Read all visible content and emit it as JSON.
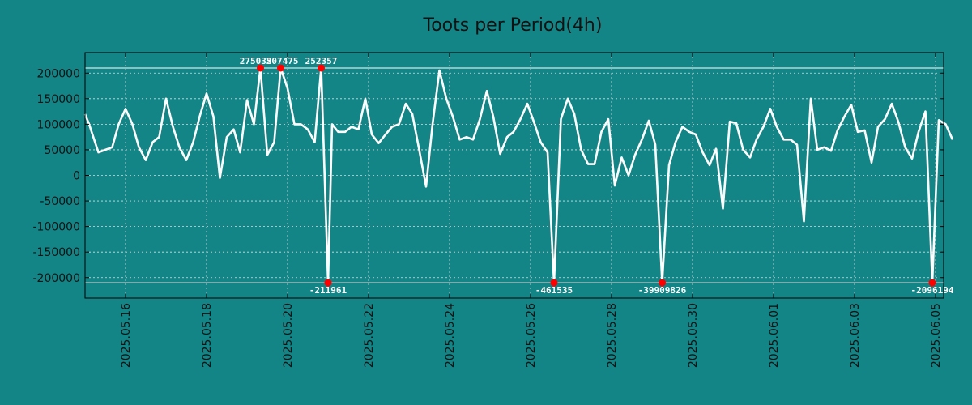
{
  "chart_data": {
    "type": "line",
    "title": "Toots per Period(4h)",
    "xlabel": "",
    "ylabel": "",
    "ylim": [
      -240000,
      240000
    ],
    "xlim_days": [
      0,
      21.2
    ],
    "grid": true,
    "colors": {
      "background": "#138587",
      "plot_background": "#138587",
      "line": "#ffffff",
      "marker": "#ff0000",
      "grid": "#d0e0e0",
      "axis": "#000000",
      "text": "#111111",
      "annotation_text": "#ffffff"
    },
    "y_ticks": [
      {
        "value": 200000,
        "label": "200000"
      },
      {
        "value": 150000,
        "label": "150000"
      },
      {
        "value": 100000,
        "label": "100000"
      },
      {
        "value": 50000,
        "label": "50000"
      },
      {
        "value": 0,
        "label": "0"
      },
      {
        "value": -50000,
        "label": "-50000"
      },
      {
        "value": -100000,
        "label": "-100000"
      },
      {
        "value": -150000,
        "label": "-150000"
      },
      {
        "value": -200000,
        "label": "-200000"
      }
    ],
    "x_ticks": [
      {
        "day": 1.0,
        "label": "2025.05.16"
      },
      {
        "day": 3.0,
        "label": "2025.05.18"
      },
      {
        "day": 5.0,
        "label": "2025.05.20"
      },
      {
        "day": 7.0,
        "label": "2025.05.22"
      },
      {
        "day": 9.0,
        "label": "2025.05.24"
      },
      {
        "day": 11.0,
        "label": "2025.05.26"
      },
      {
        "day": 13.0,
        "label": "2025.05.28"
      },
      {
        "day": 15.0,
        "label": "2025.05.30"
      },
      {
        "day": 17.0,
        "label": "2025.06.01"
      },
      {
        "day": 19.0,
        "label": "2025.06.03"
      },
      {
        "day": 21.0,
        "label": "2025.06.05"
      }
    ],
    "reference_lines": [
      {
        "name": "upper-clip-line",
        "value": 210000
      },
      {
        "name": "lower-clip-line",
        "value": -210000
      }
    ],
    "series": [
      {
        "name": "toots",
        "points": [
          [
            0.0,
            120000
          ],
          [
            0.1,
            100000
          ],
          [
            0.33,
            45000
          ],
          [
            0.67,
            55000
          ],
          [
            0.83,
            100000
          ],
          [
            1.0,
            130000
          ],
          [
            1.17,
            100000
          ],
          [
            1.33,
            55000
          ],
          [
            1.5,
            30000
          ],
          [
            1.67,
            65000
          ],
          [
            1.83,
            75000
          ],
          [
            2.0,
            150000
          ],
          [
            2.17,
            95000
          ],
          [
            2.33,
            55000
          ],
          [
            2.5,
            30000
          ],
          [
            2.67,
            65000
          ],
          [
            2.83,
            115000
          ],
          [
            3.0,
            160000
          ],
          [
            3.17,
            115000
          ],
          [
            3.33,
            -5000
          ],
          [
            3.5,
            75000
          ],
          [
            3.67,
            90000
          ],
          [
            3.83,
            45000
          ],
          [
            4.0,
            147000
          ],
          [
            4.17,
            100000
          ],
          [
            4.33,
            210000
          ],
          [
            4.5,
            40000
          ],
          [
            4.67,
            65000
          ],
          [
            4.83,
            210000
          ],
          [
            5.0,
            170000
          ],
          [
            5.17,
            100000
          ],
          [
            5.33,
            100000
          ],
          [
            5.5,
            90000
          ],
          [
            5.67,
            65000
          ],
          [
            5.83,
            210000
          ],
          [
            6.0,
            -210000
          ],
          [
            6.1,
            100000
          ],
          [
            6.25,
            85000
          ],
          [
            6.42,
            85000
          ],
          [
            6.58,
            95000
          ],
          [
            6.75,
            90000
          ],
          [
            6.92,
            150000
          ],
          [
            7.08,
            80000
          ],
          [
            7.25,
            63000
          ],
          [
            7.42,
            80000
          ],
          [
            7.58,
            95000
          ],
          [
            7.75,
            100000
          ],
          [
            7.92,
            140000
          ],
          [
            8.08,
            120000
          ],
          [
            8.25,
            50000
          ],
          [
            8.42,
            -22000
          ],
          [
            8.58,
            100000
          ],
          [
            8.75,
            205000
          ],
          [
            8.92,
            150000
          ],
          [
            9.08,
            115000
          ],
          [
            9.25,
            70000
          ],
          [
            9.42,
            75000
          ],
          [
            9.58,
            70000
          ],
          [
            9.75,
            110000
          ],
          [
            9.92,
            165000
          ],
          [
            10.08,
            115000
          ],
          [
            10.25,
            42000
          ],
          [
            10.42,
            75000
          ],
          [
            10.58,
            85000
          ],
          [
            10.75,
            110000
          ],
          [
            10.92,
            140000
          ],
          [
            11.08,
            105000
          ],
          [
            11.25,
            65000
          ],
          [
            11.42,
            45000
          ],
          [
            11.58,
            -210000
          ],
          [
            11.75,
            110000
          ],
          [
            11.92,
            150000
          ],
          [
            12.08,
            120000
          ],
          [
            12.25,
            50000
          ],
          [
            12.42,
            22000
          ],
          [
            12.58,
            22000
          ],
          [
            12.75,
            85000
          ],
          [
            12.92,
            110000
          ],
          [
            13.08,
            -20000
          ],
          [
            13.25,
            35000
          ],
          [
            13.42,
            0
          ],
          [
            13.58,
            40000
          ],
          [
            13.75,
            70000
          ],
          [
            13.92,
            107000
          ],
          [
            14.08,
            60000
          ],
          [
            14.25,
            -210000
          ],
          [
            14.42,
            20000
          ],
          [
            14.58,
            65000
          ],
          [
            14.75,
            95000
          ],
          [
            14.92,
            85000
          ],
          [
            15.08,
            80000
          ],
          [
            15.25,
            45000
          ],
          [
            15.42,
            20000
          ],
          [
            15.58,
            52000
          ],
          [
            15.75,
            -65000
          ],
          [
            15.92,
            105000
          ],
          [
            16.08,
            102000
          ],
          [
            16.25,
            50000
          ],
          [
            16.42,
            35000
          ],
          [
            16.58,
            70000
          ],
          [
            16.75,
            95000
          ],
          [
            16.92,
            130000
          ],
          [
            17.08,
            95000
          ],
          [
            17.25,
            70000
          ],
          [
            17.42,
            70000
          ],
          [
            17.58,
            60000
          ],
          [
            17.75,
            -90000
          ],
          [
            17.92,
            150000
          ],
          [
            18.08,
            50000
          ],
          [
            18.25,
            55000
          ],
          [
            18.42,
            48000
          ],
          [
            18.58,
            88000
          ],
          [
            18.75,
            115000
          ],
          [
            18.92,
            138000
          ],
          [
            19.08,
            85000
          ],
          [
            19.25,
            88000
          ],
          [
            19.42,
            25000
          ],
          [
            19.58,
            95000
          ],
          [
            19.75,
            110000
          ],
          [
            19.92,
            140000
          ],
          [
            20.08,
            105000
          ],
          [
            20.25,
            55000
          ],
          [
            20.42,
            33000
          ],
          [
            20.58,
            85000
          ],
          [
            20.75,
            125000
          ],
          [
            20.92,
            -210000
          ],
          [
            21.08,
            108000
          ],
          [
            21.25,
            100000
          ],
          [
            21.42,
            70000
          ]
        ]
      }
    ],
    "annotations": [
      {
        "day": 4.33,
        "y": 210000,
        "label": "275035",
        "position": "above",
        "anchor": "end",
        "dx": 14
      },
      {
        "day": 4.83,
        "y": 210000,
        "label": "207475",
        "position": "above",
        "anchor": "end",
        "dx": 22
      },
      {
        "day": 5.83,
        "y": 210000,
        "label": "252357",
        "position": "above",
        "anchor": "middle",
        "dx": 0
      },
      {
        "day": 6.0,
        "y": -210000,
        "label": "-211961",
        "position": "below",
        "anchor": "middle",
        "dx": 0
      },
      {
        "day": 11.58,
        "y": -210000,
        "label": "-461535",
        "position": "below",
        "anchor": "middle",
        "dx": 0
      },
      {
        "day": 14.25,
        "y": -210000,
        "label": "-39909826",
        "position": "below",
        "anchor": "middle",
        "dx": 0
      },
      {
        "day": 20.92,
        "y": -210000,
        "label": "-2096194",
        "position": "below",
        "anchor": "middle",
        "dx": 0
      }
    ]
  }
}
